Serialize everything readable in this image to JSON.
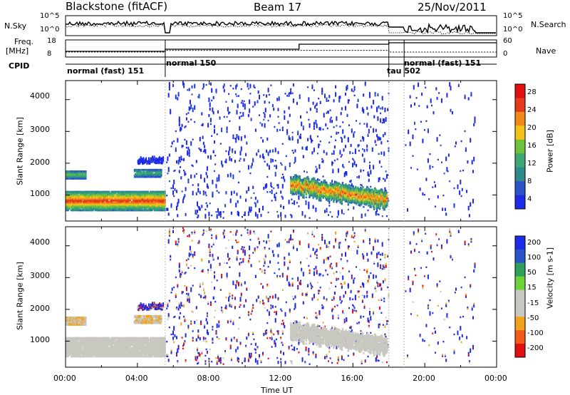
{
  "header": {
    "radar": "Blackstone (fitACF)",
    "beam": "Beam 17",
    "date": "25/Nov/2011"
  },
  "strip_labels": {
    "nsky": "N.Sky",
    "nsearch": "N.Search",
    "freq": "Freq.",
    "freq_unit": "[MHz]",
    "nave": "Nave",
    "cpid": "CPID",
    "noise_ticks": [
      "10^5",
      "10^0"
    ],
    "freq_ticks": [
      "18",
      "8"
    ],
    "nave_ticks": [
      "60",
      "0"
    ]
  },
  "cpid_segments": [
    {
      "label": "normal (fast) 151",
      "start_h": 0.0,
      "end_h": 5.55
    },
    {
      "label": "normal 150",
      "start_h": 5.55,
      "end_h": 18.0
    },
    {
      "label": "tau 502",
      "start_h": 18.0,
      "end_h": 18.85
    },
    {
      "label": "normal (fast) 151",
      "start_h": 18.85,
      "end_h": 24.0
    }
  ],
  "panels": {
    "power": {
      "ylabel": "Slant Range [km]",
      "cbar_label": "Power [dB]",
      "cbar_ticks": [
        "28",
        "24",
        "20",
        "16",
        "12",
        "8",
        "4"
      ]
    },
    "velocity": {
      "ylabel": "Slant Range [km]",
      "cbar_label": "Velocity [m s-1]",
      "cbar_ticks": [
        "200",
        "100",
        "50",
        "15",
        "-15",
        "-50",
        "-100",
        "-200"
      ]
    }
  },
  "xaxis": {
    "label": "Time UT",
    "ticks": [
      "00:00",
      "04:00",
      "08:00",
      "12:00",
      "16:00",
      "20:00",
      "00:00"
    ]
  },
  "chart_data": {
    "type": "heatmap",
    "title": "Blackstone (fitACF) Beam 17 25/Nov/2011",
    "xlabel": "Time UT",
    "ylabel": "Slant Range [km]",
    "xlim_hours": [
      0,
      24
    ],
    "ylim_km": [
      180,
      4600
    ],
    "yticks_km": [
      1000,
      2000,
      3000,
      4000
    ],
    "power_cbar": {
      "range_db": [
        0,
        32
      ],
      "colors": [
        "#1e2be6",
        "#2b55c8",
        "#2f8a8a",
        "#3da873",
        "#6fc23b",
        "#f2c21a",
        "#f28a1a",
        "#e23a1a",
        "#e01010"
      ]
    },
    "velocity_cbar": {
      "range_ms": [
        -250,
        250
      ],
      "colors": [
        "#e01010",
        "#f25a1a",
        "#f2a21a",
        "#c8c8c0",
        "#c8c8c0",
        "#6fd23b",
        "#2fa05a",
        "#2b55c8",
        "#1e2be6"
      ]
    },
    "echo_regions": [
      {
        "name": "ground scatter (early)",
        "t_h": [
          0.0,
          5.5
        ],
        "range_km": [
          500,
          1100
        ],
        "peak_power_db": 26,
        "velocity_ms": 0
      },
      {
        "name": "band 1600km (early)",
        "t_h": [
          0.0,
          1.1
        ],
        "range_km": [
          1500,
          1750
        ],
        "peak_power_db": 14,
        "velocity_ms": -80
      },
      {
        "name": "band 1650km (late morning)",
        "t_h": [
          3.8,
          5.3
        ],
        "range_km": [
          1550,
          1800
        ],
        "peak_power_db": 12,
        "velocity_ms": -80
      },
      {
        "name": "band 2050km",
        "t_h": [
          4.0,
          5.4
        ],
        "range_km": [
          2000,
          2150
        ],
        "peak_power_db": 8,
        "velocity_ms": -90
      },
      {
        "name": "scatter field",
        "t_h": [
          5.6,
          18.0
        ],
        "range_km": [
          300,
          4500
        ],
        "peak_power_db": 4,
        "velocity_ms": 200
      },
      {
        "name": "ground scatter (evening)",
        "t_h": [
          12.5,
          17.9
        ],
        "range_km": [
          600,
          1700
        ],
        "peak_power_db": 24,
        "velocity_ms": 5
      },
      {
        "name": "sparse scatter (night)",
        "t_h": [
          18.9,
          22.8
        ],
        "range_km": [
          300,
          4500
        ],
        "peak_power_db": 4,
        "velocity_ms": 200
      }
    ],
    "noise_series": {
      "nsky_log10": 4.0,
      "nsearch_log10": 3.8
    },
    "frequency_mhz": [
      {
        "t_h": [
          0.0,
          5.55
        ],
        "value": 11
      },
      {
        "t_h": [
          5.55,
          13.0
        ],
        "value": 12.5
      },
      {
        "t_h": [
          13.0,
          18.0
        ],
        "value": 16
      },
      {
        "t_h": [
          18.0,
          24.0
        ],
        "value": 17
      }
    ],
    "nave": [
      {
        "t_h": [
          0.0,
          5.55
        ],
        "value": 15
      },
      {
        "t_h": [
          5.55,
          18.0
        ],
        "value": 22
      },
      {
        "t_h": [
          18.0,
          24.0
        ],
        "value": 15
      }
    ]
  }
}
